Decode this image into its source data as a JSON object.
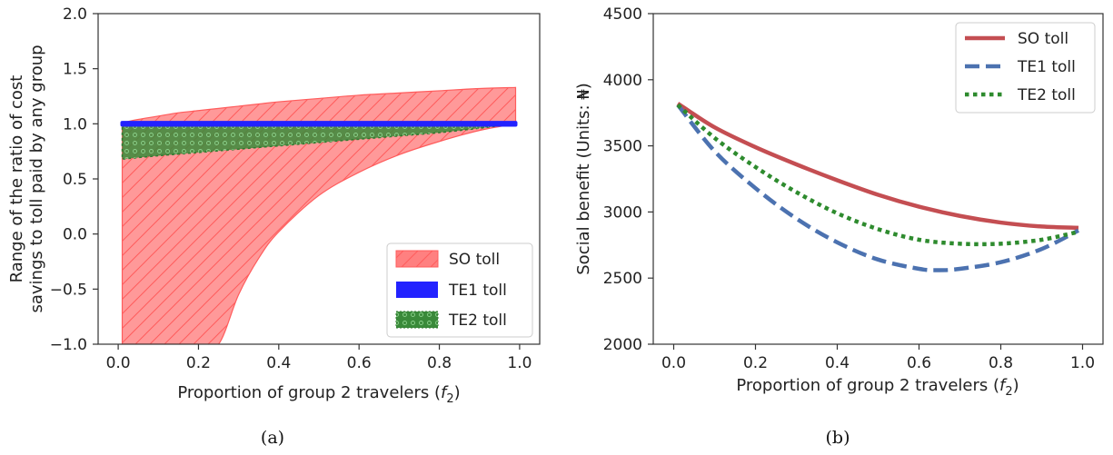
{
  "chart_data": [
    {
      "type": "area",
      "panel_caption": "(a)",
      "xlabel_text": "Proportion of group 2 travelers (",
      "xlabel_var": "f",
      "xlabel_sub": "2",
      "xlabel_close": ")",
      "ylabel_lines": [
        "Range of the ratio of cost",
        "savings to toll paid by any group"
      ],
      "xlim": [
        -0.05,
        1.05
      ],
      "ylim": [
        -1.0,
        2.0
      ],
      "xticks": [
        0.0,
        0.2,
        0.4,
        0.6,
        0.8,
        1.0
      ],
      "xtick_labels": [
        "0.0",
        "0.2",
        "0.4",
        "0.6",
        "0.8",
        "1.0"
      ],
      "yticks": [
        -1.0,
        -0.5,
        0.0,
        0.5,
        1.0,
        1.5,
        2.0
      ],
      "ytick_labels": [
        "−1.0",
        "−0.5",
        "0.0",
        "0.5",
        "1.0",
        "1.5",
        "2.0"
      ],
      "grid": false,
      "legend_position": "lower-right",
      "series": [
        {
          "name": "SO toll",
          "color": "#ff8080",
          "edge": "#ff5c5c",
          "x": [
            0.01,
            0.05,
            0.1,
            0.15,
            0.2,
            0.25,
            0.3,
            0.35,
            0.4,
            0.5,
            0.6,
            0.7,
            0.8,
            0.9,
            0.99
          ],
          "upper": [
            1.01,
            1.04,
            1.07,
            1.1,
            1.12,
            1.14,
            1.16,
            1.18,
            1.2,
            1.23,
            1.26,
            1.28,
            1.3,
            1.32,
            1.33
          ],
          "lower": [
            -1.0,
            -1.0,
            -1.0,
            -1.0,
            -1.0,
            -1.0,
            -0.55,
            -0.22,
            0.02,
            0.35,
            0.56,
            0.72,
            0.84,
            0.94,
            1.0
          ]
        },
        {
          "name": "TE1 toll",
          "color": "#2222ff",
          "edge": "#2222ff",
          "x": [
            0.01,
            0.99
          ],
          "upper": [
            1.01,
            1.01
          ],
          "lower": [
            0.99,
            0.99
          ]
        },
        {
          "name": "TE2 toll",
          "color": "#3a8a3a",
          "edge": "#2f7a2f",
          "x": [
            0.01,
            0.1,
            0.2,
            0.3,
            0.4,
            0.5,
            0.6,
            0.7,
            0.8,
            0.9,
            0.99
          ],
          "upper": [
            1.0,
            1.0,
            1.0,
            1.0,
            1.0,
            1.0,
            1.0,
            1.0,
            1.0,
            1.0,
            1.0
          ],
          "lower": [
            0.68,
            0.71,
            0.74,
            0.77,
            0.8,
            0.83,
            0.86,
            0.89,
            0.92,
            0.96,
            1.0
          ]
        }
      ]
    },
    {
      "type": "line",
      "panel_caption": "(b)",
      "xlabel_text": "Proportion of group 2 travelers (",
      "xlabel_var": "f",
      "xlabel_sub": "2",
      "xlabel_close": ")",
      "ylabel_text": "Social benefit (Units: ₦)",
      "xlim": [
        -0.05,
        1.05
      ],
      "ylim": [
        2000,
        4500
      ],
      "xticks": [
        0.0,
        0.2,
        0.4,
        0.6,
        0.8,
        1.0
      ],
      "xtick_labels": [
        "0.0",
        "0.2",
        "0.4",
        "0.6",
        "0.8",
        "1.0"
      ],
      "yticks": [
        2000,
        2500,
        3000,
        3500,
        4000,
        4500
      ],
      "ytick_labels": [
        "2000",
        "2500",
        "3000",
        "3500",
        "4000",
        "4500"
      ],
      "grid": false,
      "legend_position": "upper-right",
      "series": [
        {
          "name": "SO toll",
          "color": "#c44e52",
          "style": "solid",
          "x": [
            0.01,
            0.1,
            0.2,
            0.3,
            0.4,
            0.5,
            0.6,
            0.7,
            0.8,
            0.9,
            0.99
          ],
          "y": [
            3820,
            3640,
            3490,
            3360,
            3240,
            3130,
            3040,
            2970,
            2920,
            2890,
            2880
          ]
        },
        {
          "name": "TE1 toll",
          "color": "#4c72b0",
          "style": "dashed",
          "x": [
            0.01,
            0.1,
            0.2,
            0.3,
            0.4,
            0.5,
            0.6,
            0.65,
            0.7,
            0.8,
            0.9,
            0.99
          ],
          "y": [
            3810,
            3460,
            3180,
            2950,
            2770,
            2640,
            2570,
            2560,
            2570,
            2620,
            2720,
            2860
          ]
        },
        {
          "name": "TE2 toll",
          "color": "#2e8b2e",
          "style": "dotted",
          "x": [
            0.01,
            0.1,
            0.2,
            0.3,
            0.4,
            0.5,
            0.6,
            0.7,
            0.8,
            0.9,
            0.99
          ],
          "y": [
            3810,
            3560,
            3340,
            3150,
            2990,
            2870,
            2790,
            2760,
            2760,
            2790,
            2850
          ]
        }
      ]
    }
  ]
}
